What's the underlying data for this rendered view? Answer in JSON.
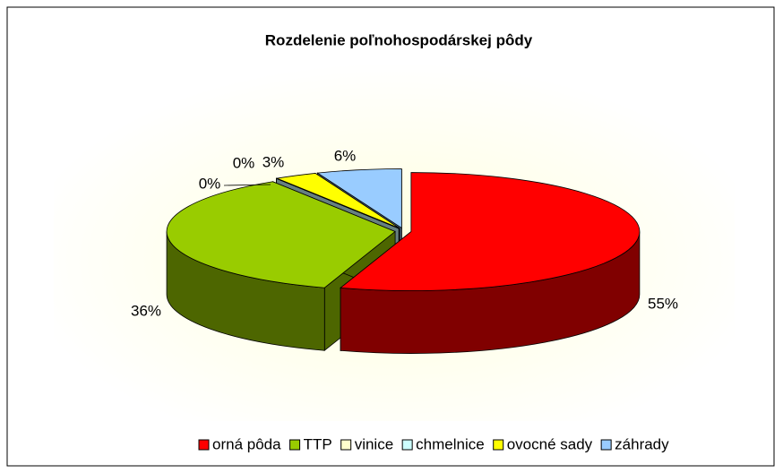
{
  "chart_data": {
    "type": "pie3d",
    "title": "Rozdelenie poľnohospodárskej pôdy",
    "categories": [
      "orná pôda",
      "TTP",
      "vinice",
      "chmelnice",
      "ovocné sady",
      "záhrady"
    ],
    "values": [
      55,
      36,
      0,
      0,
      3,
      6
    ],
    "value_labels": [
      "55%",
      "36%",
      "0%",
      "0%",
      "3%",
      "6%"
    ],
    "colors": [
      "#ff0000",
      "#99cc00",
      "#ffffcc",
      "#ccffff",
      "#ffff00",
      "#99ccff"
    ],
    "legend": "bottom"
  }
}
